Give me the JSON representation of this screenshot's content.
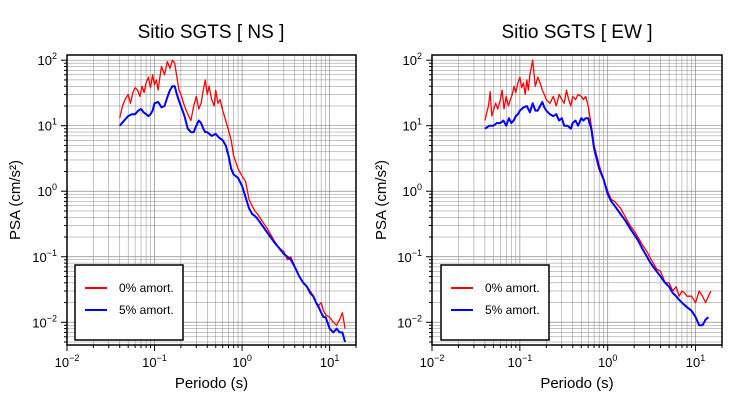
{
  "chart_data": [
    {
      "type": "line",
      "title": "Sitio SGTS [ NS ]",
      "xlabel": "Periodo (s)",
      "ylabel": "PSA (cm/s²)",
      "xscale": "log",
      "yscale": "log",
      "xlim": [
        0.01,
        20
      ],
      "ylim": [
        0.0045,
        120
      ],
      "grid": true,
      "legend_position": "bottom-left",
      "x_ticks": [
        {
          "value": 0.01,
          "base": "10",
          "exp": "−2"
        },
        {
          "value": 0.1,
          "base": "10",
          "exp": "−1"
        },
        {
          "value": 1,
          "base": "10",
          "exp": "0"
        },
        {
          "value": 10,
          "base": "10",
          "exp": "1"
        }
      ],
      "y_ticks": [
        {
          "value": 0.01,
          "base": "10",
          "exp": "−2"
        },
        {
          "value": 0.1,
          "base": "10",
          "exp": "−1"
        },
        {
          "value": 1,
          "base": "10",
          "exp": "0"
        },
        {
          "value": 10,
          "base": "10",
          "exp": "1"
        },
        {
          "value": 100,
          "base": "10",
          "exp": "2"
        }
      ],
      "series": [
        {
          "name": "0% amort.",
          "color": "#ff0000",
          "x": [
            0.04,
            0.043,
            0.046,
            0.05,
            0.053,
            0.057,
            0.06,
            0.064,
            0.068,
            0.072,
            0.076,
            0.08,
            0.085,
            0.09,
            0.095,
            0.1,
            0.105,
            0.11,
            0.115,
            0.12,
            0.13,
            0.14,
            0.15,
            0.16,
            0.17,
            0.18,
            0.19,
            0.2,
            0.22,
            0.24,
            0.26,
            0.28,
            0.3,
            0.32,
            0.34,
            0.36,
            0.38,
            0.4,
            0.42,
            0.45,
            0.48,
            0.5,
            0.53,
            0.56,
            0.6,
            0.65,
            0.7,
            0.75,
            0.8,
            0.9,
            1.0,
            1.1,
            1.2,
            1.3,
            1.4,
            1.5,
            1.7,
            2.0,
            2.3,
            2.6,
            3.0,
            3.3,
            3.6,
            4.0,
            4.5,
            5.0,
            5.5,
            6.0,
            6.5,
            7.0,
            7.5,
            8.0,
            8.5,
            9.0,
            10,
            11,
            12,
            13,
            14,
            15
          ],
          "y": [
            13,
            20,
            25,
            30,
            22,
            33,
            38,
            35,
            28,
            40,
            32,
            45,
            55,
            38,
            60,
            42,
            50,
            35,
            55,
            80,
            60,
            95,
            75,
            100,
            90,
            55,
            35,
            30,
            20,
            15,
            12,
            20,
            28,
            18,
            22,
            35,
            50,
            30,
            40,
            25,
            20,
            35,
            22,
            25,
            17,
            12,
            8.5,
            6,
            3.5,
            2.2,
            1.7,
            1.4,
            0.75,
            0.6,
            0.5,
            0.45,
            0.35,
            0.25,
            0.18,
            0.14,
            0.12,
            0.09,
            0.1,
            0.07,
            0.05,
            0.04,
            0.035,
            0.03,
            0.025,
            0.02,
            0.018,
            0.02,
            0.015,
            0.013,
            0.012,
            0.01,
            0.009,
            0.011,
            0.014,
            0.008
          ]
        },
        {
          "name": "5% amort.",
          "color": "#0000ff",
          "x": [
            0.04,
            0.045,
            0.05,
            0.055,
            0.06,
            0.065,
            0.07,
            0.075,
            0.08,
            0.085,
            0.09,
            0.095,
            0.1,
            0.11,
            0.12,
            0.13,
            0.14,
            0.15,
            0.16,
            0.17,
            0.18,
            0.19,
            0.2,
            0.22,
            0.24,
            0.26,
            0.28,
            0.3,
            0.32,
            0.34,
            0.36,
            0.38,
            0.4,
            0.45,
            0.5,
            0.55,
            0.6,
            0.65,
            0.7,
            0.75,
            0.8,
            0.9,
            1.0,
            1.1,
            1.2,
            1.3,
            1.4,
            1.5,
            1.7,
            2.0,
            2.3,
            2.6,
            3.0,
            3.3,
            3.6,
            4.0,
            4.5,
            5.0,
            5.5,
            6.0,
            6.5,
            7.0,
            7.5,
            8.0,
            8.5,
            9.0,
            10,
            11,
            12,
            13,
            14,
            15
          ],
          "y": [
            10,
            12,
            14,
            15,
            15,
            17,
            18,
            16,
            15,
            14,
            15,
            17,
            22,
            23,
            19,
            20,
            27,
            35,
            40,
            40,
            30,
            24,
            20,
            14,
            9,
            8,
            8,
            10,
            12,
            11,
            9,
            8,
            8,
            7,
            7.5,
            6.5,
            6,
            5,
            3.5,
            2.2,
            1.8,
            1.6,
            1.2,
            0.8,
            0.55,
            0.45,
            0.42,
            0.38,
            0.3,
            0.22,
            0.17,
            0.14,
            0.11,
            0.1,
            0.09,
            0.07,
            0.05,
            0.04,
            0.035,
            0.028,
            0.025,
            0.02,
            0.017,
            0.014,
            0.012,
            0.012,
            0.008,
            0.007,
            0.008,
            0.007,
            0.007,
            0.005
          ]
        }
      ]
    },
    {
      "type": "line",
      "title": "Sitio SGTS [ EW ]",
      "xlabel": "Periodo (s)",
      "ylabel": "PSA (cm/s²)",
      "xscale": "log",
      "yscale": "log",
      "xlim": [
        0.01,
        20
      ],
      "ylim": [
        0.0045,
        120
      ],
      "grid": true,
      "legend_position": "bottom-left",
      "x_ticks": [
        {
          "value": 0.01,
          "base": "10",
          "exp": "−2"
        },
        {
          "value": 0.1,
          "base": "10",
          "exp": "−1"
        },
        {
          "value": 1,
          "base": "10",
          "exp": "0"
        },
        {
          "value": 10,
          "base": "10",
          "exp": "1"
        }
      ],
      "y_ticks": [
        {
          "value": 0.01,
          "base": "10",
          "exp": "−2"
        },
        {
          "value": 0.1,
          "base": "10",
          "exp": "−1"
        },
        {
          "value": 1,
          "base": "10",
          "exp": "0"
        },
        {
          "value": 10,
          "base": "10",
          "exp": "1"
        },
        {
          "value": 100,
          "base": "10",
          "exp": "2"
        }
      ],
      "series": [
        {
          "name": "0% amort.",
          "color": "#ff0000",
          "x": [
            0.04,
            0.042,
            0.044,
            0.046,
            0.048,
            0.05,
            0.053,
            0.056,
            0.06,
            0.063,
            0.066,
            0.07,
            0.074,
            0.078,
            0.082,
            0.086,
            0.09,
            0.095,
            0.1,
            0.105,
            0.11,
            0.115,
            0.12,
            0.125,
            0.13,
            0.14,
            0.15,
            0.16,
            0.17,
            0.18,
            0.19,
            0.2,
            0.22,
            0.24,
            0.26,
            0.28,
            0.3,
            0.32,
            0.34,
            0.36,
            0.38,
            0.4,
            0.43,
            0.46,
            0.5,
            0.53,
            0.56,
            0.6,
            0.65,
            0.7,
            0.8,
            0.9,
            1.0,
            1.1,
            1.2,
            1.4,
            1.6,
            1.8,
            2.0,
            2.2,
            2.5,
            2.8,
            3.0,
            3.3,
            3.6,
            4.0,
            4.5,
            5.0,
            5.5,
            6.0,
            6.5,
            7.0,
            7.5,
            8.0,
            9.0,
            10,
            11,
            12,
            13,
            14,
            15
          ],
          "y": [
            12,
            16,
            20,
            33,
            14,
            17,
            22,
            18,
            25,
            35,
            18,
            28,
            20,
            25,
            30,
            40,
            32,
            45,
            55,
            38,
            45,
            30,
            50,
            35,
            60,
            100,
            40,
            55,
            45,
            35,
            30,
            25,
            22,
            28,
            20,
            30,
            25,
            22,
            35,
            25,
            20,
            28,
            25,
            30,
            28,
            25,
            28,
            20,
            10,
            5,
            2.5,
            1.5,
            1.0,
            0.75,
            0.7,
            0.55,
            0.4,
            0.3,
            0.25,
            0.2,
            0.15,
            0.12,
            0.1,
            0.08,
            0.065,
            0.06,
            0.04,
            0.04,
            0.03,
            0.035,
            0.025,
            0.03,
            0.028,
            0.025,
            0.025,
            0.02,
            0.03,
            0.025,
            0.02,
            0.025,
            0.03
          ]
        },
        {
          "name": "5% amort.",
          "color": "#0000ff",
          "x": [
            0.04,
            0.045,
            0.05,
            0.055,
            0.06,
            0.065,
            0.07,
            0.075,
            0.08,
            0.085,
            0.09,
            0.095,
            0.1,
            0.11,
            0.12,
            0.13,
            0.14,
            0.15,
            0.16,
            0.17,
            0.18,
            0.19,
            0.2,
            0.22,
            0.24,
            0.26,
            0.28,
            0.3,
            0.32,
            0.35,
            0.38,
            0.4,
            0.43,
            0.46,
            0.5,
            0.53,
            0.56,
            0.6,
            0.65,
            0.7,
            0.8,
            0.9,
            1.0,
            1.1,
            1.2,
            1.4,
            1.6,
            1.8,
            2.0,
            2.2,
            2.5,
            2.8,
            3.0,
            3.3,
            3.6,
            4.0,
            4.5,
            5.0,
            5.5,
            6.0,
            6.5,
            7.0,
            8.0,
            9.0,
            10,
            11,
            12,
            13,
            14
          ],
          "y": [
            9,
            10,
            10,
            11,
            11,
            12,
            10,
            13,
            11,
            12,
            14,
            15,
            17,
            19,
            20,
            16,
            22,
            17,
            17,
            20,
            23,
            19,
            17,
            15,
            14,
            15,
            12,
            13,
            10,
            10,
            9,
            11,
            12,
            10,
            13,
            12,
            13,
            13,
            9,
            4.5,
            2.2,
            1.5,
            0.9,
            0.7,
            0.6,
            0.45,
            0.35,
            0.27,
            0.22,
            0.18,
            0.13,
            0.1,
            0.085,
            0.07,
            0.06,
            0.05,
            0.04,
            0.035,
            0.028,
            0.025,
            0.022,
            0.02,
            0.017,
            0.015,
            0.012,
            0.009,
            0.009,
            0.011,
            0.012
          ]
        }
      ]
    }
  ]
}
